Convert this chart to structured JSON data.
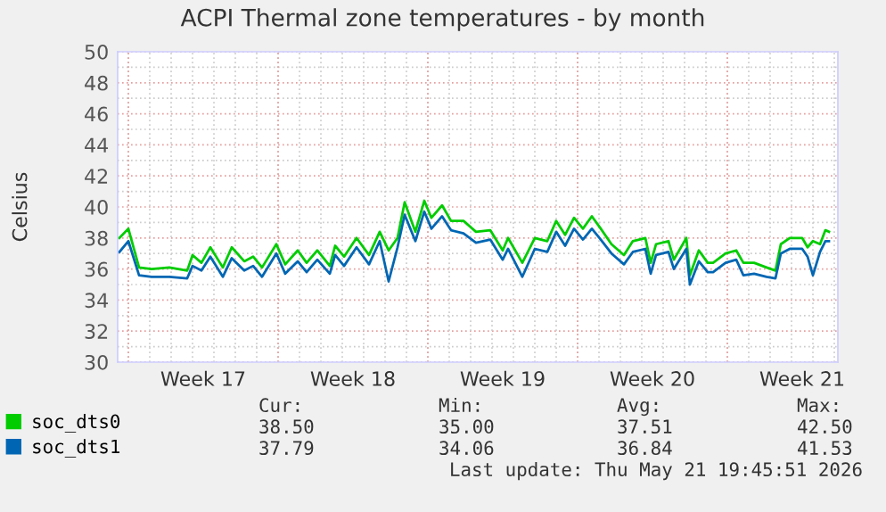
{
  "chart_data": {
    "type": "line",
    "title": "ACPI Thermal zone temperatures - by month",
    "ylabel": "Celsius",
    "x": [
      "2026-04-19T14:00",
      "2026-04-20T00:00",
      "2026-04-20T12:00",
      "2026-04-21T02:00",
      "2026-04-21T22:00",
      "2026-04-22T18:00",
      "2026-04-23T00:00",
      "2026-04-23T10:00",
      "2026-04-23T20:00",
      "2026-04-24T10:00",
      "2026-04-24T20:00",
      "2026-04-25T10:00",
      "2026-04-25T20:00",
      "2026-04-26T06:00",
      "2026-04-26T22:00",
      "2026-04-27T08:00",
      "2026-04-27T22:00",
      "2026-04-28T08:00",
      "2026-04-28T20:00",
      "2026-04-29T10:00",
      "2026-04-29T16:00",
      "2026-04-30T02:00",
      "2026-04-30T16:00",
      "2026-05-01T06:00",
      "2026-05-01T18:00",
      "2026-05-02T04:00",
      "2026-05-02T14:00",
      "2026-05-02T22:00",
      "2026-05-03T10:00",
      "2026-05-03T20:00",
      "2026-05-04T04:00",
      "2026-05-04T16:00",
      "2026-05-05T02:00",
      "2026-05-05T16:00",
      "2026-05-06T06:00",
      "2026-05-06T22:00",
      "2026-05-07T12:00",
      "2026-05-07T18:00",
      "2026-05-08T10:00",
      "2026-05-09T00:00",
      "2026-05-09T14:00",
      "2026-05-10T00:00",
      "2026-05-10T10:00",
      "2026-05-10T20:00",
      "2026-05-11T06:00",
      "2026-05-11T16:00",
      "2026-05-12T02:00",
      "2026-05-12T14:00",
      "2026-05-13T04:00",
      "2026-05-13T14:00",
      "2026-05-14T04:00",
      "2026-05-14T10:00",
      "2026-05-14T16:00",
      "2026-05-15T06:00",
      "2026-05-15T12:00",
      "2026-05-16T02:00",
      "2026-05-16T06:00",
      "2026-05-16T16:00",
      "2026-05-17T02:00",
      "2026-05-17T08:00",
      "2026-05-17T22:00",
      "2026-05-18T10:00",
      "2026-05-18T18:00",
      "2026-05-19T06:00",
      "2026-05-19T20:00",
      "2026-05-20T06:00",
      "2026-05-20T12:00",
      "2026-05-20T22:00",
      "2026-05-21T12:00",
      "2026-05-21T18:00",
      "2026-05-22T00:00",
      "2026-05-22T08:00",
      "2026-05-22T14:00",
      "2026-05-22T18:00"
    ],
    "series": [
      {
        "name": "soc_dts0",
        "color": "#00cc00",
        "values": [
          38.0,
          38.6,
          36.1,
          36.0,
          36.1,
          35.9,
          36.9,
          36.4,
          37.4,
          36.1,
          37.4,
          36.5,
          36.8,
          36.1,
          37.6,
          36.3,
          37.2,
          36.4,
          37.2,
          36.2,
          37.5,
          36.8,
          38.0,
          36.9,
          38.4,
          37.2,
          38.0,
          40.3,
          38.4,
          40.4,
          39.3,
          40.1,
          39.1,
          39.1,
          38.4,
          38.5,
          37.2,
          38.0,
          36.4,
          38.0,
          37.8,
          39.1,
          38.2,
          39.3,
          38.6,
          39.4,
          38.6,
          37.6,
          36.9,
          37.8,
          38.0,
          36.4,
          37.6,
          37.8,
          36.6,
          38.0,
          35.6,
          37.2,
          36.4,
          36.4,
          37.0,
          37.2,
          36.4,
          36.4,
          36.1,
          35.9,
          37.6,
          38.0,
          38.0,
          37.4,
          37.8,
          37.6,
          38.5,
          38.4
        ]
      },
      {
        "name": "soc_dts1",
        "color": "#0066b3",
        "values": [
          37.1,
          37.8,
          35.6,
          35.5,
          35.5,
          35.4,
          36.2,
          35.9,
          36.8,
          35.5,
          36.7,
          35.9,
          36.2,
          35.5,
          37.0,
          35.7,
          36.5,
          35.8,
          36.6,
          35.7,
          36.9,
          36.2,
          37.4,
          36.3,
          37.8,
          35.2,
          37.4,
          39.5,
          37.8,
          39.7,
          38.6,
          39.4,
          38.5,
          38.3,
          37.7,
          37.9,
          36.6,
          37.3,
          35.5,
          37.3,
          37.1,
          38.4,
          37.5,
          38.6,
          37.9,
          38.6,
          37.9,
          37.0,
          36.3,
          37.1,
          37.3,
          35.7,
          36.9,
          37.1,
          36.0,
          37.3,
          35.0,
          36.5,
          35.8,
          35.8,
          36.4,
          36.6,
          35.6,
          35.7,
          35.5,
          35.4,
          37.0,
          37.3,
          37.3,
          36.8,
          35.6,
          37.1,
          37.8,
          37.8
        ]
      }
    ],
    "xlim": [
      "2026-04-19T12:00",
      "2026-05-23T04:00"
    ],
    "xticks": [
      {
        "value": "2026-04-20T00:00",
        "label": null
      },
      {
        "value": "2026-04-23T12:00",
        "label": "Week 17"
      },
      {
        "value": "2026-04-27T00:00",
        "label": null
      },
      {
        "value": "2026-04-30T12:00",
        "label": "Week 18"
      },
      {
        "value": "2026-05-04T00:00",
        "label": null
      },
      {
        "value": "2026-05-07T12:00",
        "label": "Week 19"
      },
      {
        "value": "2026-05-11T00:00",
        "label": null
      },
      {
        "value": "2026-05-14T12:00",
        "label": "Week 20"
      },
      {
        "value": "2026-05-18T00:00",
        "label": null
      },
      {
        "value": "2026-05-21T12:00",
        "label": "Week 21"
      }
    ],
    "ylim": [
      30,
      50
    ],
    "yticks": [
      30,
      32,
      34,
      36,
      38,
      40,
      42,
      44,
      46,
      48,
      50
    ],
    "grid": true,
    "legend": "bottom left",
    "marker": "none",
    "line_style": "solid",
    "annotations": [
      "Cur:",
      "Min:",
      "Avg:",
      "Max:",
      "38.50",
      "35.00",
      "37.51",
      "42.50",
      "37.79",
      "34.06",
      "36.84",
      "41.53",
      "Last update: Thu May 21 19:45:51 2026"
    ]
  }
}
